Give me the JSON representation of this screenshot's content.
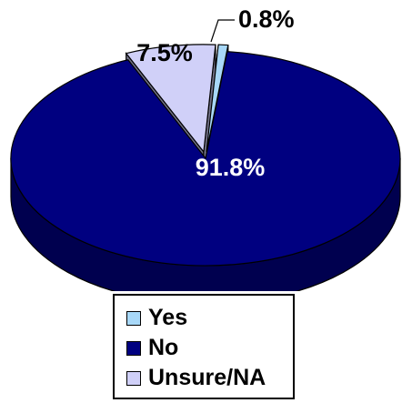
{
  "chart_data": {
    "type": "pie",
    "title": "",
    "categories": [
      "Yes",
      "No",
      "Unsure/NA"
    ],
    "values": [
      0.8,
      91.8,
      7.5
    ],
    "value_labels": [
      "0.8%",
      "91.8%",
      "7.5%"
    ],
    "colors": [
      "#A8D8F8",
      "#000080",
      "#D0D0F8"
    ],
    "exploded": [
      true,
      false,
      true
    ],
    "style": "3d",
    "legend": {
      "placement": "bottom",
      "entries": [
        "Yes",
        "No",
        "Unsure/NA"
      ]
    }
  }
}
